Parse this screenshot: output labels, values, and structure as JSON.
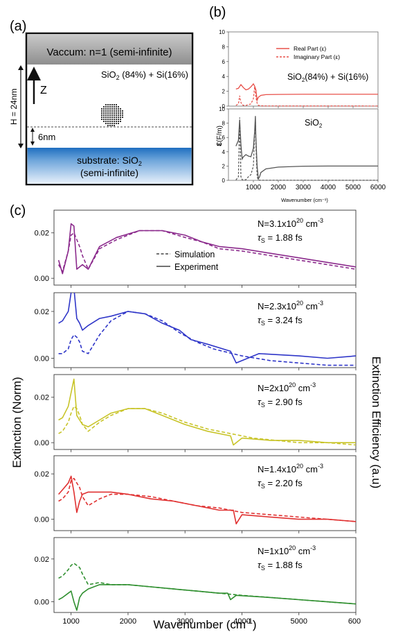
{
  "panel_a": {
    "label": "(a)",
    "vacuum": "Vaccum: n=1 (semi-infinite)",
    "film_main": "SiO",
    "film_sub": "2",
    "film_rest": " (84%) + Si(16%)",
    "z_label": "Z",
    "height_label": "H = 24nm",
    "gap_label": "6nm",
    "substrate_line1_main": "substrate: SiO",
    "substrate_line1_sub": "2",
    "substrate_line2": "(semi-infinite)"
  },
  "panel_b": {
    "label": "(b)",
    "ylabel_main": "ε",
    "ylabel_unit": "(F/m)",
    "xlabel": "Wavenumber  (cm⁻¹)",
    "x_ticks": [
      "1000",
      "2000",
      "3000",
      "4000",
      "5000",
      "6000"
    ],
    "y_ticks": [
      "0",
      "2",
      "4",
      "6",
      "8",
      "10"
    ],
    "legend_real": "Real Part (ε)",
    "legend_imag": "Imaginary Part (ε)",
    "top_label_main": "SiO",
    "top_label_sub": "2",
    "top_label_rest": "(84%) + Si(16%)",
    "bottom_label_main": "SiO",
    "bottom_label_sub": "2",
    "colors": {
      "top": "#e8504a",
      "bottom": "#555555"
    }
  },
  "panel_c": {
    "label": "(c)",
    "ylabel_left": "Extinction (Norm)",
    "ylabel_right": "Extinction Efficiency (a.u)",
    "xlabel_main": "Wavenumber (cm",
    "xlabel_sup": "-1",
    "xlabel_end": ")",
    "x_ticks": [
      "1000",
      "2000",
      "3000",
      "4000",
      "5000",
      "600"
    ],
    "y_ticks": [
      "0.00",
      "0.02"
    ],
    "legend_sim": "Simulation",
    "legend_exp": "Experiment",
    "subpanels": [
      {
        "N": "N=3.1x10",
        "exp": "20",
        "unit": " cm",
        "unit_exp": "-3",
        "tau": "τ",
        "tau_sub": "S",
        "tau_val": " = 1.88 fs",
        "color": "#8b2a8c"
      },
      {
        "N": "N=2.3x10",
        "exp": "20",
        "unit": " cm",
        "unit_exp": "-3",
        "tau": "τ",
        "tau_sub": "S",
        "tau_val": " = 3.24 fs",
        "color": "#2e35c8"
      },
      {
        "N": "N=2x10",
        "exp": "20",
        "unit": " cm",
        "unit_exp": "-3",
        "tau": "τ",
        "tau_sub": "S",
        "tau_val": " = 2.90 fs",
        "color": "#c8c428"
      },
      {
        "N": "N=1.4x10",
        "exp": "20",
        "unit": " cm",
        "unit_exp": "-3",
        "tau": "τ",
        "tau_sub": "S",
        "tau_val": " = 2.20 fs",
        "color": "#e03030"
      },
      {
        "N": "N=1x10",
        "exp": "20",
        "unit": " cm",
        "unit_exp": "-3",
        "tau": "τ",
        "tau_sub": "S",
        "tau_val": " = 1.88 fs",
        "color": "#2f8f2f"
      }
    ]
  },
  "chart_data": [
    {
      "type": "line",
      "panel": "b-top",
      "xlim": [
        0,
        6000
      ],
      "ylim": [
        0,
        10
      ],
      "series": [
        {
          "name": "Real Part (ε)",
          "style": "solid",
          "x": [
            300,
            400,
            500,
            600,
            700,
            800,
            900,
            1000,
            1050,
            1100,
            1150,
            1200,
            1300,
            1500,
            2000,
            3000,
            4000,
            5000,
            6000
          ],
          "y": [
            2.3,
            2.4,
            2.9,
            2.5,
            2.2,
            2.3,
            2.6,
            3.0,
            2.7,
            2.2,
            0.8,
            1.2,
            1.45,
            1.55,
            1.58,
            1.6,
            1.6,
            1.6,
            1.6
          ]
        },
        {
          "name": "Imaginary Part (ε)",
          "style": "dashed",
          "x": [
            300,
            400,
            450,
            500,
            550,
            600,
            700,
            800,
            900,
            1000,
            1050,
            1100,
            1150,
            1200,
            1300,
            1500,
            6000
          ],
          "y": [
            0.1,
            0.3,
            1.4,
            0.5,
            0.2,
            0.1,
            0.1,
            0.2,
            0.3,
            1.0,
            2.6,
            1.2,
            0.4,
            0.1,
            0.05,
            0.03,
            0.02
          ]
        }
      ]
    },
    {
      "type": "line",
      "panel": "b-bottom",
      "xlim": [
        0,
        6000
      ],
      "ylim": [
        0,
        10
      ],
      "series": [
        {
          "name": "real",
          "style": "solid",
          "x": [
            300,
            400,
            450,
            500,
            550,
            600,
            700,
            800,
            900,
            1000,
            1050,
            1080,
            1100,
            1150,
            1200,
            1250,
            1300,
            1500,
            2000,
            3000,
            4000,
            5000,
            6000
          ],
          "y": [
            4.8,
            5.6,
            8.5,
            5.0,
            3.0,
            3.3,
            3.6,
            3.4,
            3.3,
            4.5,
            6.8,
            9.0,
            6.0,
            2.0,
            0.2,
            0.5,
            1.1,
            1.6,
            1.85,
            1.98,
            2.0,
            2.0,
            2.0
          ]
        },
        {
          "name": "imag",
          "style": "dashed",
          "x": [
            300,
            400,
            450,
            480,
            500,
            550,
            600,
            700,
            800,
            900,
            1000,
            1050,
            1080,
            1100,
            1150,
            1200,
            1300,
            6000
          ],
          "y": [
            0.05,
            0.5,
            8.8,
            4.0,
            0.5,
            0.1,
            0.05,
            0.1,
            0.5,
            0.8,
            2.0,
            6.5,
            8.5,
            5.0,
            0.5,
            0.05,
            0.02,
            0.01
          ]
        }
      ]
    },
    {
      "type": "line",
      "panel": "c1",
      "xlim": [
        700,
        6000
      ],
      "ylim": [
        -0.003,
        0.03
      ],
      "series": [
        {
          "name": "Experiment",
          "style": "solid",
          "x": [
            780,
            850,
            950,
            1000,
            1050,
            1100,
            1150,
            1200,
            1300,
            1500,
            1800,
            2200,
            2600,
            3000,
            3300,
            3600,
            4000,
            4500,
            5000,
            5500,
            6000
          ],
          "y": [
            0.008,
            0.002,
            0.012,
            0.024,
            0.023,
            0.004,
            0.005,
            0.006,
            0.004,
            0.014,
            0.018,
            0.021,
            0.021,
            0.019,
            0.016,
            0.014,
            0.013,
            0.011,
            0.009,
            0.007,
            0.005
          ]
        },
        {
          "name": "Simulation",
          "style": "dashed",
          "x": [
            780,
            850,
            950,
            1000,
            1050,
            1100,
            1150,
            1200,
            1300,
            1500,
            1800,
            2200,
            2600,
            3000,
            3300,
            3600,
            4000,
            4500,
            5000,
            5500,
            6000
          ],
          "y": [
            0.006,
            0.003,
            0.012,
            0.019,
            0.02,
            0.017,
            0.014,
            0.01,
            0.004,
            0.013,
            0.017,
            0.021,
            0.021,
            0.018,
            0.016,
            0.013,
            0.012,
            0.01,
            0.008,
            0.006,
            0.004
          ]
        }
      ]
    },
    {
      "type": "line",
      "panel": "c2",
      "xlim": [
        700,
        6000
      ],
      "ylim": [
        -0.004,
        0.028
      ],
      "series": [
        {
          "name": "Experiment",
          "style": "solid",
          "x": [
            780,
            850,
            950,
            1000,
            1050,
            1100,
            1150,
            1200,
            1300,
            1500,
            1700,
            2000,
            2300,
            2600,
            2900,
            3100,
            3400,
            3800,
            3900,
            4300,
            5000,
            5500,
            6000
          ],
          "y": [
            0.015,
            0.016,
            0.02,
            0.028,
            0.03,
            0.017,
            0.015,
            0.012,
            0.014,
            0.017,
            0.018,
            0.02,
            0.019,
            0.015,
            0.012,
            0.008,
            0.006,
            0.003,
            -0.002,
            0.002,
            0.001,
            0.0,
            0.001
          ]
        },
        {
          "name": "Simulation",
          "style": "dashed",
          "x": [
            780,
            850,
            950,
            1000,
            1050,
            1100,
            1150,
            1200,
            1300,
            1500,
            1700,
            2000,
            2300,
            2600,
            2900,
            3200,
            3500,
            4000,
            4500,
            5000,
            5500,
            6000
          ],
          "y": [
            0.002,
            0.002,
            0.004,
            0.008,
            0.01,
            0.009,
            0.007,
            0.003,
            0.002,
            0.01,
            0.016,
            0.02,
            0.019,
            0.016,
            0.011,
            0.007,
            0.004,
            0.001,
            -0.001,
            -0.002,
            -0.003,
            -0.003
          ]
        }
      ]
    },
    {
      "type": "line",
      "panel": "c3",
      "xlim": [
        700,
        6000
      ],
      "ylim": [
        -0.003,
        0.03
      ],
      "series": [
        {
          "name": "Experiment",
          "style": "solid",
          "x": [
            780,
            850,
            950,
            1000,
            1050,
            1100,
            1150,
            1200,
            1300,
            1500,
            1700,
            2000,
            2300,
            2600,
            3000,
            3400,
            3800,
            3850,
            4000,
            4500,
            5000,
            5500,
            6000
          ],
          "y": [
            0.01,
            0.011,
            0.016,
            0.022,
            0.028,
            0.012,
            0.01,
            0.008,
            0.007,
            0.01,
            0.013,
            0.015,
            0.015,
            0.012,
            0.008,
            0.005,
            0.003,
            -0.001,
            0.002,
            0.001,
            0.001,
            0.0,
            0.0
          ]
        },
        {
          "name": "Simulation",
          "style": "dashed",
          "x": [
            780,
            850,
            950,
            1000,
            1050,
            1100,
            1150,
            1200,
            1300,
            1500,
            1700,
            2000,
            2300,
            2600,
            3000,
            3400,
            3800,
            4200,
            4600,
            5000,
            5500,
            6000
          ],
          "y": [
            0.004,
            0.005,
            0.009,
            0.013,
            0.016,
            0.015,
            0.012,
            0.008,
            0.005,
            0.009,
            0.012,
            0.015,
            0.015,
            0.013,
            0.009,
            0.006,
            0.004,
            0.002,
            0.001,
            0.0,
            0.0,
            -0.001
          ]
        }
      ]
    },
    {
      "type": "line",
      "panel": "c4",
      "xlim": [
        700,
        6000
      ],
      "ylim": [
        -0.005,
        0.028
      ],
      "series": [
        {
          "name": "Experiment",
          "style": "solid",
          "x": [
            780,
            850,
            950,
            1000,
            1050,
            1100,
            1150,
            1200,
            1300,
            1500,
            1700,
            2000,
            2400,
            2800,
            3200,
            3600,
            3850,
            3900,
            4000,
            4500,
            5000,
            5500,
            6000
          ],
          "y": [
            0.011,
            0.013,
            0.016,
            0.019,
            0.012,
            0.003,
            0.008,
            0.011,
            0.012,
            0.012,
            0.012,
            0.011,
            0.009,
            0.008,
            0.006,
            0.004,
            0.004,
            -0.002,
            0.002,
            0.001,
            0.0,
            0.0,
            -0.001
          ]
        },
        {
          "name": "Simulation",
          "style": "dashed",
          "x": [
            780,
            850,
            950,
            1000,
            1050,
            1100,
            1150,
            1200,
            1300,
            1500,
            1700,
            2000,
            2400,
            2800,
            3200,
            3600,
            4000,
            4500,
            5000,
            5500,
            6000
          ],
          "y": [
            0.008,
            0.009,
            0.012,
            0.017,
            0.018,
            0.016,
            0.014,
            0.01,
            0.006,
            0.009,
            0.011,
            0.011,
            0.01,
            0.008,
            0.006,
            0.005,
            0.003,
            0.002,
            0.001,
            0.0,
            -0.001
          ]
        }
      ]
    },
    {
      "type": "line",
      "panel": "c5",
      "xlim": [
        700,
        6000
      ],
      "ylim": [
        -0.005,
        0.03
      ],
      "series": [
        {
          "name": "Experiment",
          "style": "solid",
          "x": [
            780,
            850,
            950,
            1000,
            1050,
            1100,
            1150,
            1200,
            1300,
            1500,
            1700,
            2000,
            2400,
            2800,
            3200,
            3600,
            3750,
            3800,
            3900,
            4500,
            5000,
            5500,
            6000
          ],
          "y": [
            0.001,
            0.002,
            0.004,
            0.005,
            0.0,
            -0.004,
            0.002,
            0.004,
            0.006,
            0.008,
            0.008,
            0.008,
            0.007,
            0.006,
            0.005,
            0.004,
            0.004,
            0.001,
            0.003,
            0.002,
            0.001,
            0.0,
            -0.001
          ]
        },
        {
          "name": "Simulation",
          "style": "dashed",
          "x": [
            780,
            850,
            950,
            1000,
            1050,
            1100,
            1150,
            1200,
            1300,
            1500,
            1700,
            2000,
            2400,
            2800,
            3200,
            3600,
            4000,
            4500,
            5000,
            5500,
            6000
          ],
          "y": [
            0.011,
            0.012,
            0.015,
            0.017,
            0.018,
            0.017,
            0.016,
            0.013,
            0.008,
            0.009,
            0.008,
            0.008,
            0.007,
            0.006,
            0.005,
            0.004,
            0.003,
            0.002,
            0.001,
            0.0,
            -0.001
          ]
        }
      ]
    }
  ]
}
